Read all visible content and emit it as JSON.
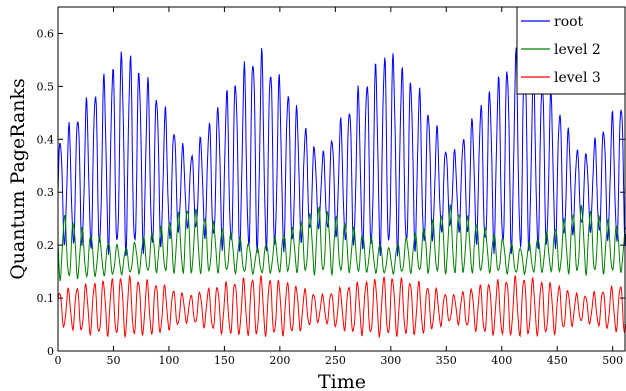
{
  "chart_data": {
    "type": "line",
    "title": "",
    "xlabel": "Time",
    "ylabel": "Quantum PageRanks",
    "xlim": [
      0,
      512
    ],
    "ylim": [
      0,
      0.65
    ],
    "xticks": [
      0,
      50,
      100,
      150,
      200,
      250,
      300,
      350,
      400,
      450,
      500
    ],
    "yticks": [
      0,
      0.1,
      0.2,
      0.3,
      0.4,
      0.5,
      0.6
    ],
    "ytick_labels": [
      "0",
      "0.1",
      "0.2",
      "0.3",
      "0.4",
      "0.5",
      "0.6"
    ],
    "legend_position": "top-right",
    "grid": false,
    "series": [
      {
        "name": "root",
        "color": "#0000ff",
        "description_of_shape": "fast oscillation (period ~8) with slow beat envelope (period ~118); peaks up to ~0.62, troughs down to ~0.13",
        "envelope_center": [
          [
            0,
            0.3
          ],
          [
            30,
            0.34
          ],
          [
            60,
            0.38
          ],
          [
            90,
            0.34
          ],
          [
            118,
            0.3
          ],
          [
            150,
            0.34
          ],
          [
            180,
            0.38
          ],
          [
            210,
            0.34
          ],
          [
            236,
            0.3
          ],
          [
            268,
            0.34
          ],
          [
            298,
            0.38
          ],
          [
            328,
            0.34
          ],
          [
            354,
            0.3
          ],
          [
            386,
            0.34
          ],
          [
            416,
            0.38
          ],
          [
            446,
            0.34
          ],
          [
            472,
            0.3
          ],
          [
            512,
            0.34
          ]
        ],
        "envelope_amplitude": [
          [
            0,
            0.12
          ],
          [
            30,
            0.18
          ],
          [
            60,
            0.24
          ],
          [
            90,
            0.18
          ],
          [
            118,
            0.08
          ],
          [
            150,
            0.18
          ],
          [
            180,
            0.24
          ],
          [
            210,
            0.18
          ],
          [
            236,
            0.08
          ],
          [
            268,
            0.18
          ],
          [
            298,
            0.24
          ],
          [
            328,
            0.18
          ],
          [
            354,
            0.08
          ],
          [
            386,
            0.18
          ],
          [
            416,
            0.24
          ],
          [
            446,
            0.18
          ],
          [
            472,
            0.08
          ],
          [
            512,
            0.18
          ]
        ]
      },
      {
        "name": "level 2",
        "color": "#008000",
        "description_of_shape": "fast oscillation with slow beat envelope, ranges ~0.13 to ~0.29",
        "envelope_center": [
          [
            0,
            0.2
          ],
          [
            30,
            0.18
          ],
          [
            60,
            0.17
          ],
          [
            90,
            0.19
          ],
          [
            118,
            0.21
          ],
          [
            150,
            0.19
          ],
          [
            180,
            0.17
          ],
          [
            210,
            0.19
          ],
          [
            236,
            0.21
          ],
          [
            268,
            0.19
          ],
          [
            298,
            0.17
          ],
          [
            328,
            0.19
          ],
          [
            354,
            0.21
          ],
          [
            386,
            0.19
          ],
          [
            416,
            0.17
          ],
          [
            446,
            0.19
          ],
          [
            472,
            0.21
          ],
          [
            512,
            0.19
          ]
        ],
        "envelope_amplitude": [
          [
            0,
            0.08
          ],
          [
            30,
            0.05
          ],
          [
            60,
            0.03
          ],
          [
            90,
            0.05
          ],
          [
            118,
            0.08
          ],
          [
            150,
            0.05
          ],
          [
            180,
            0.03
          ],
          [
            210,
            0.05
          ],
          [
            236,
            0.08
          ],
          [
            268,
            0.05
          ],
          [
            298,
            0.03
          ],
          [
            328,
            0.05
          ],
          [
            354,
            0.08
          ],
          [
            386,
            0.05
          ],
          [
            416,
            0.03
          ],
          [
            446,
            0.05
          ],
          [
            472,
            0.08
          ],
          [
            512,
            0.05
          ]
        ]
      },
      {
        "name": "level 3",
        "color": "#ff0000",
        "description_of_shape": "fast oscillation with slow beat envelope, ranges ~0.01 to ~0.16",
        "envelope_center": [
          [
            0,
            0.08
          ],
          [
            30,
            0.08
          ],
          [
            60,
            0.085
          ],
          [
            90,
            0.08
          ],
          [
            118,
            0.08
          ],
          [
            150,
            0.08
          ],
          [
            180,
            0.085
          ],
          [
            210,
            0.08
          ],
          [
            236,
            0.08
          ],
          [
            268,
            0.08
          ],
          [
            298,
            0.085
          ],
          [
            328,
            0.08
          ],
          [
            354,
            0.08
          ],
          [
            386,
            0.08
          ],
          [
            416,
            0.085
          ],
          [
            446,
            0.08
          ],
          [
            472,
            0.08
          ],
          [
            512,
            0.08
          ]
        ],
        "envelope_amplitude": [
          [
            0,
            0.04
          ],
          [
            30,
            0.06
          ],
          [
            60,
            0.07
          ],
          [
            90,
            0.06
          ],
          [
            118,
            0.03
          ],
          [
            150,
            0.06
          ],
          [
            180,
            0.07
          ],
          [
            210,
            0.06
          ],
          [
            236,
            0.03
          ],
          [
            268,
            0.06
          ],
          [
            298,
            0.07
          ],
          [
            328,
            0.06
          ],
          [
            354,
            0.03
          ],
          [
            386,
            0.06
          ],
          [
            416,
            0.07
          ],
          [
            446,
            0.06
          ],
          [
            472,
            0.03
          ],
          [
            512,
            0.06
          ]
        ]
      }
    ]
  }
}
